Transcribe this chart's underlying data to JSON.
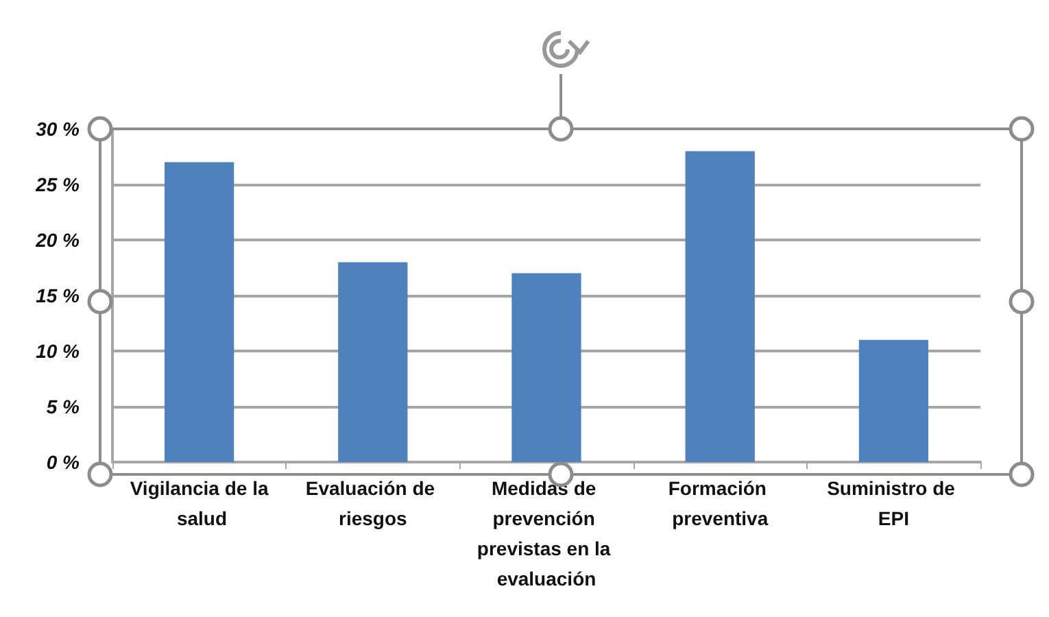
{
  "chart_data": {
    "type": "bar",
    "categories": [
      "Vigilancia de la salud",
      "Evaluación de riesgos",
      "Medidas de prevención previstas en la evaluación",
      "Formación preventiva",
      "Suministro de EPI"
    ],
    "values": [
      27,
      18,
      17,
      28,
      11
    ],
    "color": "#4f81bd",
    "ylim": [
      0,
      30
    ],
    "yticks": [
      {
        "value": 0,
        "label": "0 %"
      },
      {
        "value": 5,
        "label": "5 %"
      },
      {
        "value": 10,
        "label": "10 %"
      },
      {
        "value": 15,
        "label": "15 %"
      },
      {
        "value": 20,
        "label": "20 %"
      },
      {
        "value": 25,
        "label": "25 %"
      },
      {
        "value": 30,
        "label": "30 %"
      }
    ],
    "grid": "y"
  }
}
